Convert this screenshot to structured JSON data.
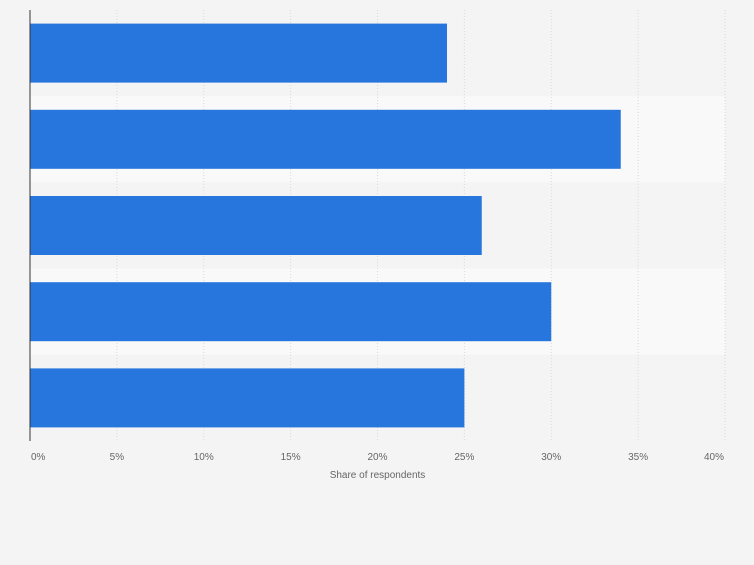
{
  "chart_data": {
    "type": "bar",
    "orientation": "horizontal",
    "categories": [
      "",
      "",
      "",
      "",
      ""
    ],
    "values": [
      24,
      34,
      26,
      30,
      25
    ],
    "xlabel": "Share of respondents",
    "ylabel": "",
    "xlim": [
      0,
      40
    ],
    "x_ticks": [
      "0%",
      "5%",
      "10%",
      "15%",
      "20%",
      "25%",
      "30%",
      "35%",
      "40%"
    ],
    "grid": true,
    "legend": "none",
    "colors": {
      "bar": "#2776dd",
      "background": "#f4f4f4",
      "band_light": "#f9f9f9",
      "grid": "#d9d9d9",
      "axis": "#333333",
      "tick_text": "#666666"
    }
  }
}
